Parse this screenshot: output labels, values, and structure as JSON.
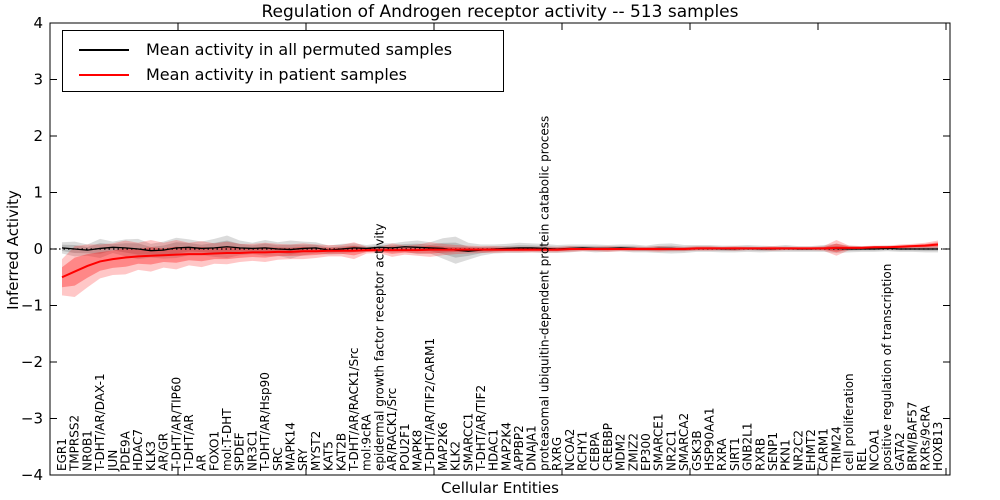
{
  "legend": {
    "items": [
      {
        "label": "Mean activity in all permuted samples",
        "color": "#000000"
      },
      {
        "label": "Mean activity in patient samples",
        "color": "#ff0000"
      }
    ]
  },
  "chart_data": {
    "type": "line",
    "title": "Regulation of Androgen receptor activity -- 513 samples",
    "xlabel": "Cellular Entities",
    "ylabel": "Inferred Activity",
    "ylim": [
      -4,
      4
    ],
    "yticks": [
      4,
      3,
      2,
      1,
      0,
      -1,
      -2,
      -3,
      -4
    ],
    "grid": false,
    "legend_position": "upper-left",
    "zero_line": {
      "style": "dotted",
      "color": "#000000",
      "y": 0
    },
    "categories": [
      "EGR1",
      "TMPRSS2",
      "NR0B1",
      "T-DHT/AR/DAX-1",
      "JUN",
      "PDE9A",
      "HDAC7",
      "KLK3",
      "AR/GR",
      "T-DHT/AR/TIP60",
      "T-DHT/AR",
      "AR",
      "FOXO1",
      "mol:T-DHT",
      "SPDEF",
      "NR3C1",
      "T-DHT/AR/Hsp90",
      "SRC",
      "MAPK14",
      "SRY",
      "MYST2",
      "KAT5",
      "KAT2B",
      "T-DHT/AR/RACK1/Src",
      "mol:9cRA",
      "epidermal growth factor receptor activity",
      "AR/RACK1/Src",
      "POU2F1",
      "MAPK8",
      "T-DHT/AR/TIF2/CARM1",
      "MAP2K6",
      "KLK2",
      "SMARCC1",
      "T-DHT/AR/TIF2",
      "HDAC1",
      "MAP2K4",
      "APPBP2",
      "DNAJA1",
      "proteasomal ubiquitin-dependent protein catabolic process",
      "RXRG",
      "NCOA2",
      "RCHY1",
      "CEBPA",
      "CREBBP",
      "MDM2",
      "ZMIZ2",
      "EP300",
      "SMARCE1",
      "NR2C1",
      "SMARCA2",
      "GSK3B",
      "HSP90AA1",
      "RXRA",
      "SIRT1",
      "GNB2L1",
      "RXRB",
      "SENP1",
      "PKN1",
      "NR2C2",
      "EHMT2",
      "CARM1",
      "TRIM24",
      "cell proliferation",
      "REL",
      "NCOA1",
      "positive regulation of transcription",
      "GATA2",
      "BRM/BAF57",
      "RXRs/9cRA",
      "HOXB13"
    ],
    "series": [
      {
        "name": "Mean activity in all permuted samples",
        "color": "#000000",
        "values": [
          0.02,
          0,
          -0.02,
          0.01,
          0.03,
          0.02,
          0,
          -0.03,
          -0.02,
          0.02,
          0.03,
          0.01,
          0.02,
          0.04,
          0.02,
          0.01,
          0.02,
          0,
          -0.01,
          0.01,
          0.02,
          -0.02,
          0,
          0.02,
          0.01,
          0.03,
          0.02,
          0.04,
          0.03,
          0.02,
          0.01,
          -0.02,
          -0.04,
          -0.02,
          0,
          0.01,
          0.02,
          0.02,
          0.01,
          0,
          0.01,
          0.02,
          0.01,
          0.01,
          0.02,
          0.01,
          0,
          0.01,
          0.01,
          0,
          0.01,
          0.01,
          0,
          0,
          0.01,
          0,
          0,
          0.01,
          0,
          0,
          0.01,
          0.01,
          0,
          0,
          0,
          0.01,
          0,
          0,
          0,
          0
        ]
      },
      {
        "name": "Mean activity in patient samples",
        "color": "#ff0000",
        "values": [
          -0.5,
          -0.4,
          -0.3,
          -0.22,
          -0.18,
          -0.15,
          -0.13,
          -0.12,
          -0.11,
          -0.1,
          -0.09,
          -0.09,
          -0.08,
          -0.07,
          -0.07,
          -0.06,
          -0.06,
          -0.05,
          -0.05,
          -0.04,
          -0.04,
          -0.03,
          -0.03,
          -0.03,
          -0.02,
          -0.02,
          -0.02,
          -0.02,
          -0.02,
          -0.01,
          -0.01,
          -0.01,
          -0.01,
          -0.01,
          -0.01,
          -0.01,
          -0.01,
          -0.01,
          -0.01,
          -0.01,
          0,
          0,
          0,
          0,
          0,
          0,
          0,
          0,
          0,
          0,
          0.01,
          0.01,
          0.01,
          0.01,
          0.01,
          0.01,
          0.01,
          0.01,
          0.01,
          0.01,
          0.01,
          0.02,
          0.02,
          0.02,
          0.03,
          0.03,
          0.04,
          0.05,
          0.06,
          0.08
        ]
      }
    ],
    "bands": [
      {
        "name": "permuted-samples-range",
        "color": "#888888",
        "opacity": 0.3,
        "upper": [
          0.12,
          0.13,
          0.08,
          0.18,
          0.13,
          0.17,
          0.18,
          0.09,
          0.13,
          0.2,
          0.17,
          0.13,
          0.18,
          0.24,
          0.15,
          0.11,
          0.16,
          0.12,
          0.15,
          0.13,
          0.12,
          0.06,
          0.09,
          0.1,
          0.07,
          0.1,
          0.1,
          0.13,
          0.15,
          0.12,
          0.19,
          0.22,
          0.11,
          0.08,
          0.08,
          0.09,
          0.11,
          0.1,
          0.09,
          0.07,
          0.08,
          0.08,
          0.08,
          0.07,
          0.08,
          0.08,
          0.06,
          0.09,
          0.1,
          0.07,
          0.07,
          0.07,
          0.06,
          0.06,
          0.07,
          0.06,
          0.05,
          0.07,
          0.05,
          0.05,
          0.07,
          0.09,
          0.06,
          0.05,
          0.05,
          0.06,
          0.05,
          0.05,
          0.06,
          0.06
        ],
        "lower": [
          -0.08,
          -0.13,
          -0.12,
          -0.16,
          -0.07,
          -0.13,
          -0.18,
          -0.15,
          -0.17,
          -0.16,
          -0.11,
          -0.11,
          -0.14,
          -0.16,
          -0.11,
          -0.09,
          -0.12,
          -0.12,
          -0.17,
          -0.11,
          -0.08,
          -0.1,
          -0.09,
          -0.06,
          -0.05,
          -0.04,
          -0.06,
          -0.05,
          -0.09,
          -0.08,
          -0.17,
          -0.26,
          -0.19,
          -0.12,
          -0.08,
          -0.07,
          -0.07,
          -0.06,
          -0.07,
          -0.07,
          -0.06,
          -0.04,
          -0.06,
          -0.05,
          -0.04,
          -0.06,
          -0.06,
          -0.07,
          -0.08,
          -0.07,
          -0.05,
          -0.05,
          -0.06,
          -0.06,
          -0.05,
          -0.06,
          -0.05,
          -0.05,
          -0.05,
          -0.05,
          -0.05,
          -0.07,
          -0.06,
          -0.05,
          -0.05,
          -0.04,
          -0.05,
          -0.05,
          -0.06,
          -0.06
        ]
      },
      {
        "name": "patient-samples-range",
        "color": "#ff0000",
        "opacity": 0.22,
        "upper": [
          -0.18,
          0.05,
          0.08,
          0.08,
          0.1,
          0.15,
          0.11,
          0.16,
          0.11,
          0.16,
          0.11,
          0.14,
          0.1,
          0.13,
          0.09,
          0.09,
          0.11,
          0.09,
          0.08,
          0.1,
          0.08,
          0.07,
          0.07,
          0.12,
          0.04,
          0.03,
          0.1,
          0.06,
          0.08,
          0.12,
          0.09,
          0.07,
          0.06,
          0.05,
          0.05,
          0.04,
          0.04,
          0.04,
          0.04,
          0.04,
          0.05,
          0.04,
          0.04,
          0.05,
          0.04,
          0.04,
          0.04,
          0.05,
          0.04,
          0.04,
          0.05,
          0.05,
          0.04,
          0.05,
          0.04,
          0.04,
          0.05,
          0.04,
          0.04,
          0.04,
          0.05,
          0.16,
          0.06,
          0.05,
          0.06,
          0.06,
          0.08,
          0.09,
          0.11,
          0.15
        ],
        "lower": [
          -0.82,
          -0.85,
          -0.68,
          -0.52,
          -0.46,
          -0.45,
          -0.37,
          -0.4,
          -0.33,
          -0.36,
          -0.29,
          -0.32,
          -0.26,
          -0.27,
          -0.23,
          -0.21,
          -0.23,
          -0.19,
          -0.18,
          -0.18,
          -0.16,
          -0.13,
          -0.13,
          -0.18,
          -0.08,
          -0.07,
          -0.14,
          -0.1,
          -0.12,
          -0.14,
          -0.11,
          -0.09,
          -0.08,
          -0.07,
          -0.07,
          -0.06,
          -0.06,
          -0.06,
          -0.06,
          -0.06,
          -0.05,
          -0.04,
          -0.04,
          -0.05,
          -0.04,
          -0.04,
          -0.04,
          -0.05,
          -0.04,
          -0.04,
          -0.03,
          -0.03,
          -0.02,
          -0.03,
          -0.02,
          -0.02,
          -0.03,
          -0.02,
          -0.02,
          -0.02,
          -0.03,
          -0.12,
          -0.02,
          -0.01,
          0,
          0,
          0,
          0.01,
          0.01,
          0.01
        ]
      }
    ]
  }
}
